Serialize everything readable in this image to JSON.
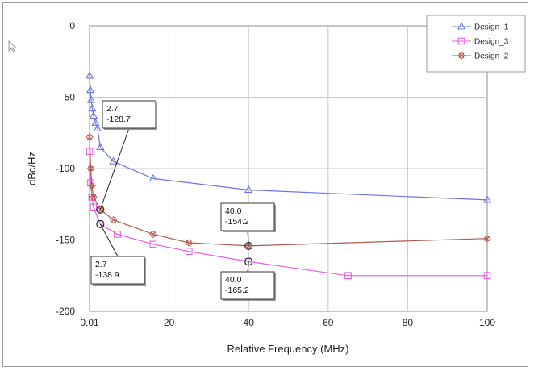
{
  "chart_data": {
    "type": "line",
    "title": "",
    "xlabel": "Relative Frequency (MHz)",
    "ylabel": "dBc/Hz",
    "xlim": [
      0,
      100
    ],
    "ylim": [
      -200,
      0
    ],
    "x_ticks": [
      0,
      20,
      40,
      60,
      80,
      100
    ],
    "x_tick_labels": [
      "0.01",
      "20",
      "40",
      "60",
      "80",
      "100"
    ],
    "y_ticks": [
      0,
      -50,
      -100,
      -150,
      -200
    ],
    "y_tick_labels": [
      "0",
      "-50",
      "-100",
      "-150",
      "-200"
    ],
    "grid": true,
    "legend_position": "top-right",
    "series": [
      {
        "name": "Design_1",
        "color": "#6b74e6",
        "marker": "triangle",
        "x": [
          0.01,
          0.2,
          0.4,
          0.7,
          1,
          1.5,
          2,
          2.7,
          6,
          16,
          40,
          100
        ],
        "y": [
          -35,
          -45,
          -52,
          -58,
          -63,
          -68,
          -72,
          -85,
          -95,
          -107,
          -115,
          -122
        ]
      },
      {
        "name": "Design_3",
        "color": "#e65ce0",
        "marker": "square",
        "x": [
          0.01,
          0.3,
          0.6,
          1,
          2.7,
          7,
          16,
          25,
          40,
          65,
          100
        ],
        "y": [
          -88,
          -110,
          -120,
          -127,
          -138.9,
          -146,
          -153,
          -158,
          -165.2,
          -175,
          -175
        ]
      },
      {
        "name": "Design_2",
        "color": "#b25a4e",
        "marker": "x-diamond",
        "x": [
          0.01,
          0.3,
          0.6,
          1,
          2.7,
          6,
          16,
          25,
          40,
          100
        ],
        "y": [
          -78,
          -100,
          -112,
          -120,
          -128.7,
          -136,
          -146,
          -152,
          -154.2,
          -149
        ]
      }
    ],
    "annotations": [
      {
        "x": 2.7,
        "y": -128.7,
        "lines": [
          "2.7",
          "-128.7"
        ]
      },
      {
        "x": 2.7,
        "y": -138.9,
        "lines": [
          "2.7",
          "-138.9"
        ]
      },
      {
        "x": 40,
        "y": -154.2,
        "lines": [
          "40.0",
          "-154.2"
        ]
      },
      {
        "x": 40,
        "y": -165.2,
        "lines": [
          "40.0",
          "-165.2"
        ]
      }
    ]
  }
}
